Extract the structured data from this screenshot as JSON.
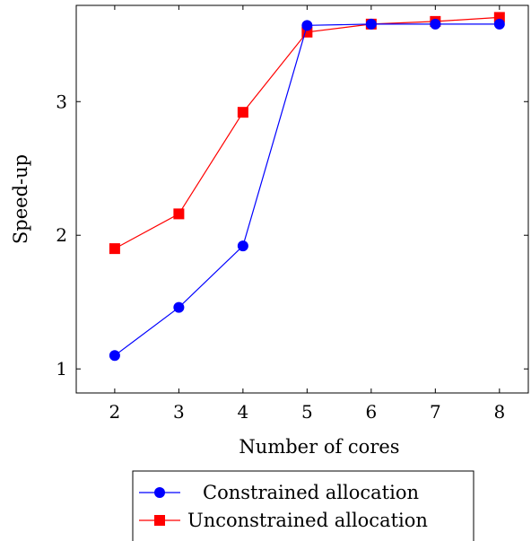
{
  "chart_data": {
    "type": "line",
    "xlabel": "Number of cores",
    "ylabel": "Speed-up",
    "x": [
      2,
      3,
      4,
      5,
      6,
      7,
      8
    ],
    "xticks": [
      "2",
      "3",
      "4",
      "5",
      "6",
      "7",
      "8"
    ],
    "yticks": [
      "1",
      "2",
      "3"
    ],
    "xlim": [
      1.4,
      8.45
    ],
    "ylim": [
      0.82,
      3.72
    ],
    "grid": false,
    "legend_position": "bottom, below the plot",
    "series": [
      {
        "name": "Constrained allocation",
        "color": "#0000ff",
        "marker": "circle",
        "values": [
          1.1,
          1.46,
          1.92,
          3.57,
          3.58,
          3.58,
          3.58
        ]
      },
      {
        "name": "Unconstrained allocation",
        "color": "#ff0000",
        "marker": "square",
        "values": [
          1.9,
          2.16,
          2.92,
          3.52,
          3.58,
          3.6,
          3.63
        ]
      }
    ]
  }
}
